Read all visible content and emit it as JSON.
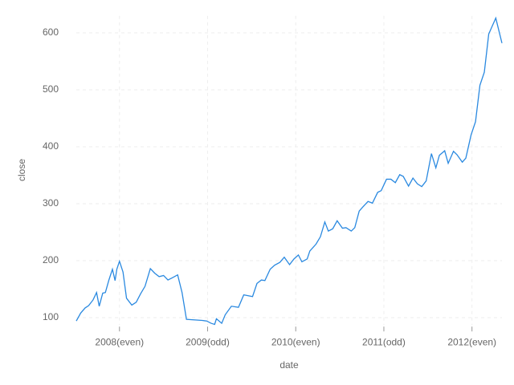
{
  "chart_data": {
    "type": "line",
    "x_label": "date",
    "y_label": "close",
    "x": [
      2007.51,
      2007.56,
      2007.61,
      2007.65,
      2007.7,
      2007.74,
      2007.77,
      2007.81,
      2007.84,
      2007.88,
      2007.92,
      2007.95,
      2007.97,
      2008.0,
      2008.04,
      2008.08,
      2008.14,
      2008.19,
      2008.24,
      2008.29,
      2008.35,
      2008.4,
      2008.45,
      2008.5,
      2008.55,
      2008.6,
      2008.66,
      2008.71,
      2008.76,
      2008.94,
      2008.99,
      2009.04,
      2009.08,
      2009.1,
      2009.16,
      2009.2,
      2009.27,
      2009.35,
      2009.41,
      2009.51,
      2009.56,
      2009.61,
      2009.65,
      2009.71,
      2009.76,
      2009.82,
      2009.87,
      2009.93,
      2009.98,
      2010.03,
      2010.07,
      2010.13,
      2010.16,
      2010.23,
      2010.28,
      2010.33,
      2010.37,
      2010.42,
      2010.47,
      2010.53,
      2010.57,
      2010.63,
      2010.67,
      2010.72,
      2010.76,
      2010.82,
      2010.87,
      2010.93,
      2010.97,
      2011.03,
      2011.08,
      2011.13,
      2011.18,
      2011.22,
      2011.28,
      2011.33,
      2011.38,
      2011.43,
      2011.48,
      2011.54,
      2011.59,
      2011.63,
      2011.69,
      2011.73,
      2011.79,
      2011.83,
      2011.89,
      2011.93,
      2011.99,
      2012.04,
      2012.09,
      2012.14,
      2012.19,
      2012.27,
      2012.34
    ],
    "series": [
      {
        "name": "close",
        "color": "#2a89e0",
        "values": [
          94,
          108,
          117,
          121,
          131,
          144,
          120,
          143,
          144,
          166,
          185,
          165,
          185,
          199,
          180,
          134,
          122,
          127,
          142,
          155,
          186,
          178,
          172,
          174,
          166,
          170,
          175,
          144,
          97,
          95,
          94,
          90,
          88,
          98,
          90,
          105,
          120,
          118,
          140,
          137,
          160,
          166,
          165,
          185,
          192,
          197,
          206,
          193,
          203,
          210,
          198,
          203,
          217,
          229,
          242,
          268,
          252,
          256,
          270,
          257,
          258,
          252,
          258,
          287,
          294,
          304,
          301,
          320,
          323,
          343,
          343,
          337,
          351,
          348,
          331,
          345,
          335,
          330,
          340,
          388,
          363,
          385,
          393,
          371,
          392,
          386,
          373,
          380,
          421,
          444,
          508,
          531,
          598,
          626,
          582
        ]
      }
    ],
    "xlim": [
      2007.51,
      2012.34
    ],
    "xticks": [
      {
        "value": 2008,
        "label": "2008(even)"
      },
      {
        "value": 2009,
        "label": "2009(odd)"
      },
      {
        "value": 2010,
        "label": "2010(even)"
      },
      {
        "value": 2011,
        "label": "2011(odd)"
      },
      {
        "value": 2012,
        "label": "2012(even)"
      }
    ],
    "ylim": [
      87,
      630
    ],
    "yticks": [
      100,
      200,
      300,
      400,
      500,
      600
    ],
    "grid": true
  }
}
